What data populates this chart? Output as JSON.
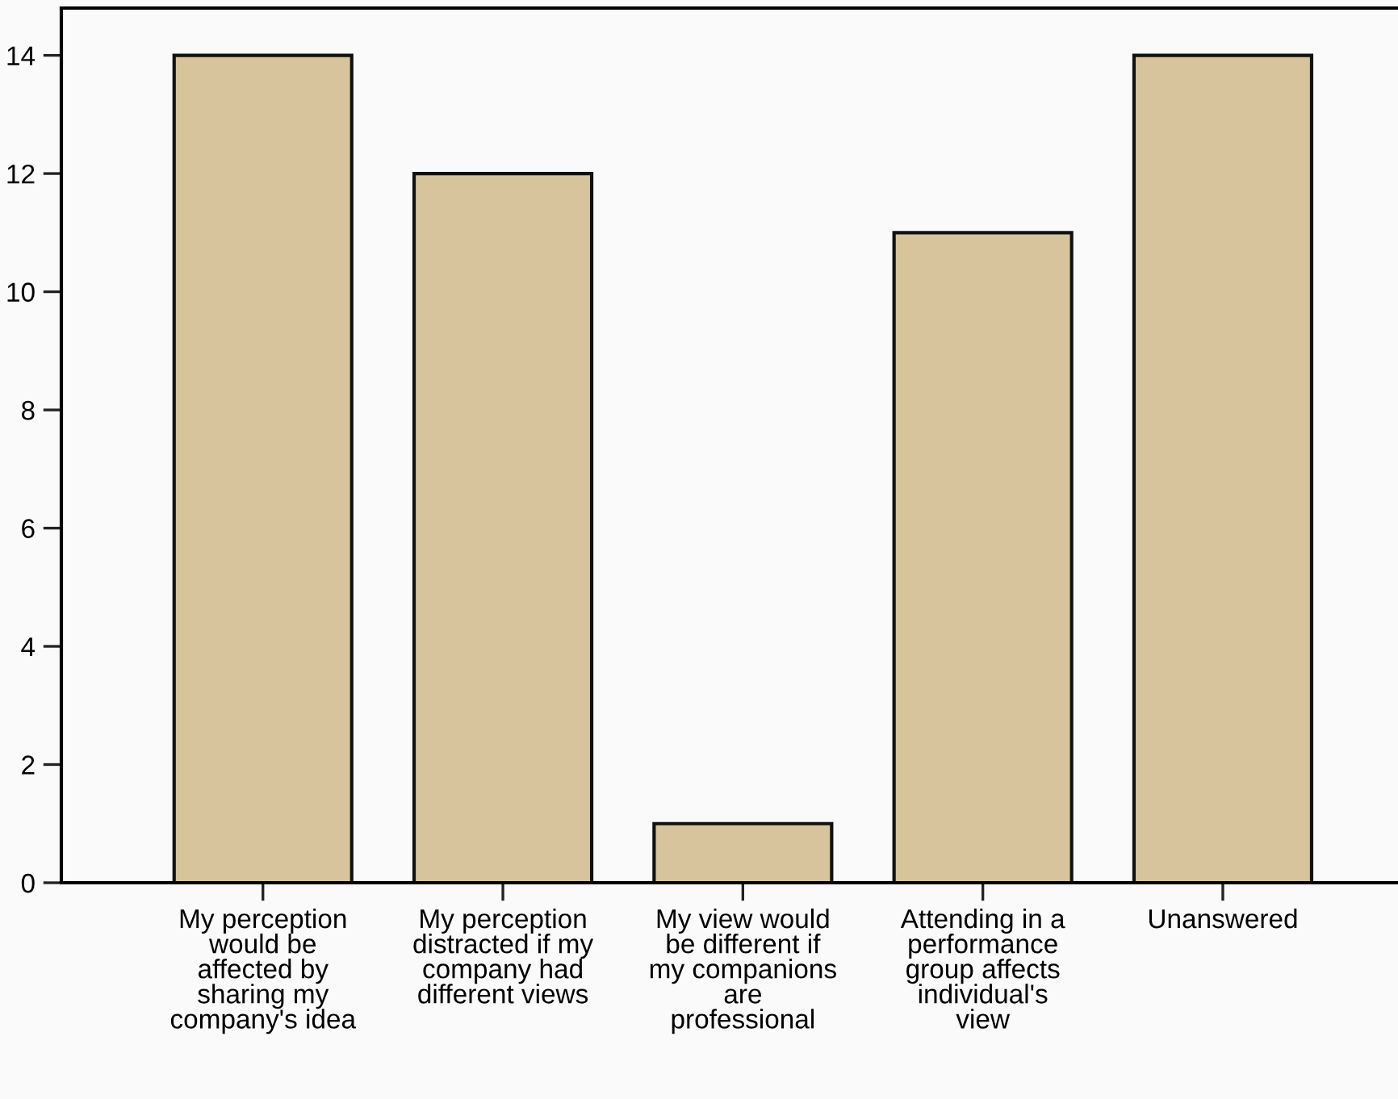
{
  "chart_data": {
    "type": "bar",
    "categories": [
      "My perception\nwould be\naffected by\nsharing my\ncompany's idea",
      "My perception\ndistracted if my\ncompany had\ndifferent views",
      "My view would\nbe different if\nmy companions\nare\nprofessional",
      "Attending in a\nperformance\ngroup affects\nindividual's\nview",
      "Unanswered"
    ],
    "values": [
      14,
      12,
      1,
      11,
      14
    ],
    "color": "#d8c49c",
    "ylim": [
      0,
      14.8
    ],
    "yticks": [
      0,
      2,
      4,
      6,
      8,
      10,
      12,
      14
    ],
    "grid": false,
    "legend": false
  }
}
